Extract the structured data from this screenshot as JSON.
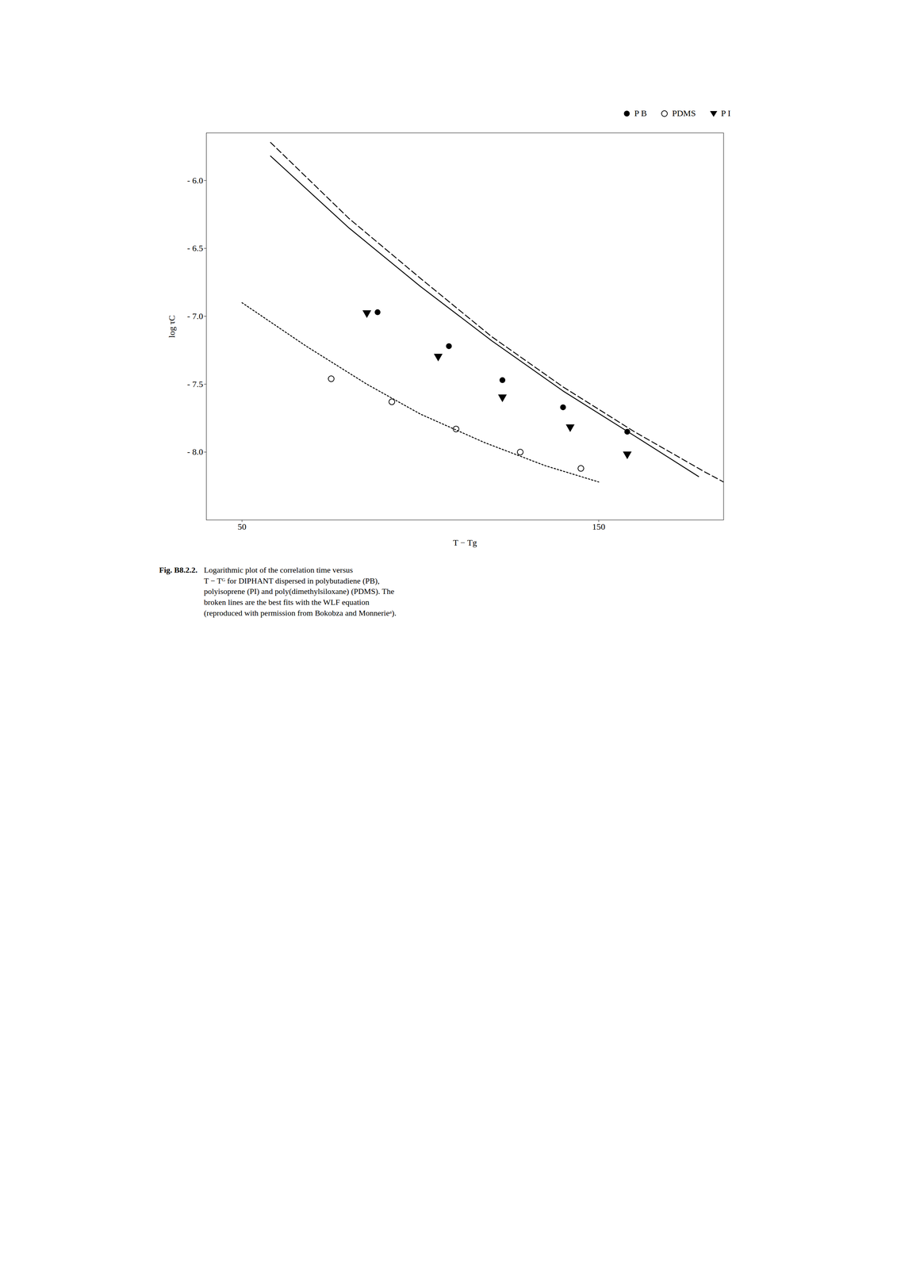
{
  "chart_data": {
    "type": "scatter",
    "xlabel": "T − Tg",
    "ylabel": "log τC",
    "xlim": [
      40,
      185
    ],
    "ylim": [
      -8.5,
      -5.65
    ],
    "xticks": [
      50,
      150
    ],
    "yticks": [
      {
        "value": -8.0,
        "label": "- 8.0"
      },
      {
        "value": -7.5,
        "label": "- 7.5"
      },
      {
        "value": -7.0,
        "label": "- 7.0"
      },
      {
        "value": -6.5,
        "label": "- 6.5"
      },
      {
        "value": -6.0,
        "label": "- 6.0"
      }
    ],
    "grid": false,
    "legend": "upper right",
    "series": [
      {
        "type": "line",
        "line_style": "solid",
        "color": "#000000",
        "x": [
          58,
          80,
          100,
          120,
          140,
          160,
          178
        ],
        "values": [
          -5.82,
          -6.35,
          -6.78,
          -7.18,
          -7.55,
          -7.88,
          -8.18
        ]
      },
      {
        "type": "line",
        "line_style": "dashed",
        "color": "#000000",
        "x": [
          58,
          80,
          100,
          120,
          140,
          160,
          180,
          185
        ],
        "values": [
          -5.72,
          -6.28,
          -6.72,
          -7.15,
          -7.52,
          -7.85,
          -8.15,
          -8.22
        ]
      },
      {
        "type": "line",
        "line_style": "dotted",
        "color": "#000000",
        "x": [
          50,
          68,
          85,
          100,
          118,
          135,
          150
        ],
        "values": [
          -6.9,
          -7.22,
          -7.5,
          -7.72,
          -7.93,
          -8.1,
          -8.22
        ]
      },
      {
        "type": "scatter",
        "name": "P B",
        "marker": "filled_circle",
        "color": "#000000",
        "x": [
          88,
          108,
          123,
          140,
          158
        ],
        "values": [
          -6.97,
          -7.22,
          -7.47,
          -7.67,
          -7.85
        ]
      },
      {
        "type": "scatter",
        "name": "PDMS",
        "marker": "open_circle",
        "color": "#000000",
        "x": [
          75,
          92,
          110,
          128,
          145
        ],
        "values": [
          -7.46,
          -7.63,
          -7.83,
          -8.0,
          -8.12
        ]
      },
      {
        "type": "scatter",
        "name": "P I",
        "marker": "triangle_down",
        "color": "#000000",
        "x": [
          85,
          105,
          123,
          142,
          158
        ],
        "values": [
          -6.98,
          -7.3,
          -7.6,
          -7.82,
          -8.02
        ]
      }
    ],
    "caption_label": "Fig. B8.2.2.",
    "caption": "Logarithmic plot of the correlation time versus\nT − Tᴳ for DIPHANT dispersed in polybutadiene (PB),\npolyisoprene (PI) and poly(dimethylsiloxane) (PDMS). The\nbroken lines are the best fits with the WLF equation\n(reproduced with permission from Bokobza and Monnerieᵃ)."
  }
}
